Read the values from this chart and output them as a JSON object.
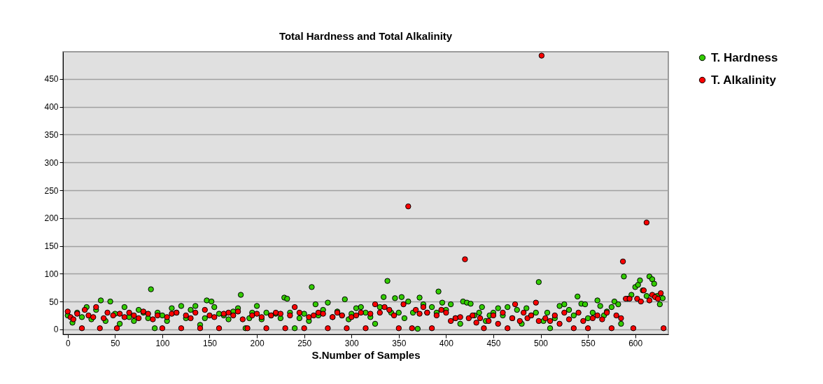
{
  "chart_data": {
    "type": "scatter",
    "title": "Total Hardness and Total Alkalinity",
    "xlabel": "S.Number of Samples",
    "xlim": [
      -5,
      635
    ],
    "ylim": [
      -9,
      499
    ],
    "xticks": [
      0,
      50,
      100,
      150,
      200,
      250,
      300,
      350,
      400,
      450,
      500,
      550,
      600
    ],
    "yticks": [
      0,
      50,
      100,
      150,
      200,
      250,
      300,
      350,
      400,
      450
    ],
    "grid": "y",
    "legend": "top right",
    "marker": "circle",
    "series": [
      {
        "name": "T. Hardness",
        "color": "#33cc00",
        "x": [
          0,
          5,
          10,
          15,
          20,
          25,
          30,
          35,
          40,
          45,
          50,
          55,
          60,
          65,
          70,
          75,
          80,
          85,
          88,
          92,
          95,
          100,
          105,
          110,
          115,
          120,
          125,
          130,
          135,
          140,
          145,
          147,
          152,
          155,
          160,
          165,
          170,
          175,
          180,
          183,
          188,
          192,
          195,
          200,
          205,
          210,
          215,
          220,
          225,
          229,
          232,
          235,
          240,
          245,
          250,
          255,
          258,
          262,
          265,
          270,
          275,
          280,
          285,
          290,
          293,
          297,
          300,
          305,
          310,
          315,
          320,
          325,
          330,
          334,
          338,
          342,
          346,
          350,
          353,
          356,
          360,
          365,
          370,
          372,
          376,
          380,
          385,
          390,
          392,
          396,
          400,
          405,
          410,
          415,
          418,
          422,
          426,
          430,
          435,
          438,
          442,
          446,
          450,
          455,
          460,
          465,
          470,
          475,
          480,
          485,
          490,
          495,
          498,
          503,
          507,
          510,
          515,
          520,
          525,
          530,
          535,
          539,
          543,
          547,
          550,
          555,
          560,
          563,
          567,
          570,
          575,
          578,
          582,
          585,
          588,
          592,
          596,
          600,
          603,
          605,
          608,
          612,
          615,
          618,
          620,
          623,
          626,
          629
        ],
        "values": [
          25,
          12,
          30,
          22,
          40,
          18,
          35,
          52,
          15,
          50,
          28,
          10,
          40,
          22,
          15,
          35,
          30,
          20,
          72,
          2,
          30,
          25,
          15,
          38,
          30,
          42,
          20,
          35,
          42,
          8,
          20,
          52,
          50,
          40,
          28,
          25,
          18,
          32,
          38,
          62,
          2,
          20,
          30,
          42,
          18,
          30,
          25,
          28,
          20,
          57,
          55,
          30,
          2,
          20,
          28,
          15,
          76,
          45,
          25,
          35,
          48,
          22,
          32,
          25,
          54,
          18,
          28,
          38,
          40,
          30,
          22,
          10,
          40,
          58,
          87,
          30,
          56,
          30,
          58,
          20,
          50,
          30,
          1,
          57,
          45,
          30,
          40,
          30,
          68,
          48,
          35,
          45,
          20,
          10,
          50,
          48,
          46,
          25,
          30,
          40,
          15,
          25,
          30,
          38,
          25,
          40,
          20,
          35,
          10,
          38,
          25,
          30,
          85,
          15,
          30,
          2,
          20,
          42,
          45,
          35,
          25,
          59,
          46,
          45,
          20,
          30,
          52,
          42,
          25,
          32,
          40,
          50,
          45,
          10,
          95,
          55,
          62,
          76,
          80,
          88,
          70,
          60,
          95,
          90,
          82,
          60,
          45,
          56
        ]
      },
      {
        "name": "T. Alkalinity",
        "color": "#ff0000",
        "x": [
          0,
          3,
          6,
          10,
          15,
          18,
          22,
          27,
          30,
          34,
          38,
          42,
          48,
          52,
          55,
          60,
          65,
          70,
          75,
          80,
          85,
          90,
          95,
          100,
          105,
          110,
          115,
          120,
          125,
          130,
          135,
          140,
          145,
          150,
          155,
          160,
          165,
          170,
          175,
          180,
          185,
          190,
          195,
          200,
          205,
          210,
          215,
          220,
          225,
          230,
          235,
          240,
          245,
          250,
          255,
          260,
          265,
          270,
          275,
          280,
          285,
          290,
          295,
          300,
          305,
          310,
          315,
          320,
          325,
          330,
          335,
          340,
          345,
          350,
          355,
          360,
          364,
          368,
          372,
          376,
          380,
          385,
          390,
          395,
          400,
          405,
          410,
          415,
          420,
          424,
          428,
          432,
          436,
          440,
          445,
          450,
          455,
          460,
          465,
          470,
          473,
          478,
          482,
          486,
          490,
          495,
          498,
          501,
          505,
          510,
          515,
          520,
          525,
          530,
          535,
          540,
          545,
          550,
          555,
          560,
          565,
          570,
          575,
          580,
          585,
          587,
          590,
          594,
          598,
          602,
          606,
          609,
          612,
          615,
          618,
          621,
          624,
          627,
          630
        ],
        "values": [
          32,
          22,
          18,
          28,
          2,
          35,
          25,
          22,
          40,
          2,
          20,
          30,
          25,
          2,
          28,
          22,
          30,
          25,
          20,
          32,
          28,
          18,
          25,
          2,
          22,
          28,
          30,
          2,
          25,
          20,
          30,
          2,
          35,
          25,
          22,
          2,
          28,
          30,
          25,
          32,
          18,
          2,
          25,
          28,
          22,
          2,
          25,
          30,
          28,
          2,
          25,
          40,
          30,
          2,
          22,
          25,
          30,
          28,
          2,
          22,
          30,
          25,
          2,
          22,
          25,
          30,
          2,
          28,
          45,
          30,
          40,
          35,
          25,
          2,
          45,
          221,
          2,
          35,
          28,
          40,
          30,
          2,
          25,
          35,
          30,
          15,
          20,
          22,
          126,
          20,
          25,
          12,
          20,
          2,
          15,
          25,
          10,
          30,
          2,
          20,
          45,
          15,
          30,
          20,
          25,
          48,
          15,
          492,
          20,
          15,
          25,
          10,
          30,
          18,
          2,
          30,
          15,
          2,
          20,
          25,
          18,
          30,
          2,
          25,
          20,
          122,
          55,
          55,
          2,
          55,
          50,
          70,
          192,
          52,
          62,
          58,
          55,
          65,
          2
        ]
      }
    ]
  }
}
